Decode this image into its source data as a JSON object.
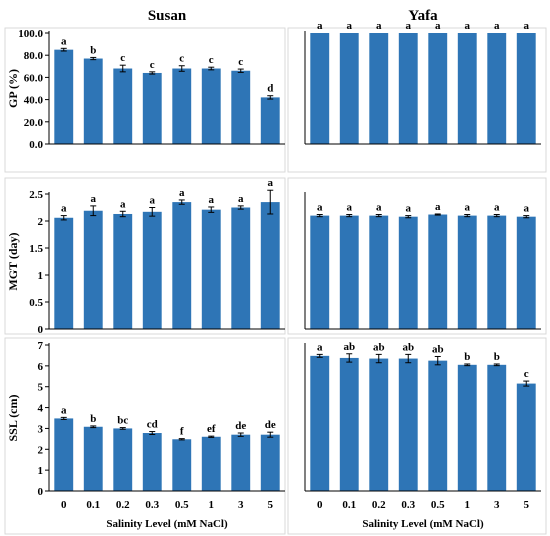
{
  "colors": {
    "bar": "#2e75b6",
    "axis": "#000000",
    "panel_border": "#d9d9d9"
  },
  "chart_data": [
    {
      "type": "bar",
      "panel": "Susan-GP",
      "title": "Susan",
      "xlabel": "",
      "ylabel": "GP (%)",
      "categories": [
        "0",
        "0.1",
        "0.2",
        "0.3",
        "0.5",
        "1",
        "3",
        "5"
      ],
      "values": [
        85,
        77,
        68,
        64,
        68,
        68,
        66,
        42
      ],
      "errors": [
        1.2,
        1.0,
        3.0,
        1.0,
        2.5,
        1.2,
        1.5,
        1.5
      ],
      "letters": [
        "a",
        "b",
        "c",
        "c",
        "c",
        "c",
        "c",
        "d"
      ],
      "ylim": [
        0,
        100
      ],
      "yticks": [
        0,
        20,
        40,
        60,
        80,
        100
      ],
      "yticklabels": [
        "0.0",
        "20.0",
        "40.0",
        "60.0",
        "80.0",
        "100.0"
      ],
      "grid": false
    },
    {
      "type": "bar",
      "panel": "Yafa-GP",
      "title": "Yafa",
      "xlabel": "",
      "ylabel": "",
      "categories": [
        "0",
        "0.1",
        "0.2",
        "0.3",
        "0.5",
        "1",
        "3",
        "5"
      ],
      "values": [
        100,
        100,
        100,
        100,
        100,
        100,
        100,
        100
      ],
      "errors": [
        0,
        0,
        0,
        0,
        0,
        0,
        0,
        0
      ],
      "letters": [
        "a",
        "a",
        "a",
        "a",
        "a",
        "a",
        "a",
        "a"
      ],
      "ylim": [
        0,
        100
      ],
      "yticks": [],
      "yticklabels": [],
      "grid": false
    },
    {
      "type": "bar",
      "panel": "Susan-MGT",
      "title": "",
      "xlabel": "",
      "ylabel": "MGT (day)",
      "categories": [
        "0",
        "0.1",
        "0.2",
        "0.3",
        "0.5",
        "1",
        "3",
        "5"
      ],
      "values": [
        2.06,
        2.19,
        2.13,
        2.17,
        2.35,
        2.21,
        2.25,
        2.35
      ],
      "errors": [
        0.04,
        0.09,
        0.05,
        0.08,
        0.04,
        0.05,
        0.03,
        0.22
      ],
      "letters": [
        "a",
        "a",
        "a",
        "a",
        "a",
        "a",
        "a",
        "a"
      ],
      "ylim": [
        0,
        2.5
      ],
      "yticks": [
        0,
        0.5,
        1,
        1.5,
        2,
        2.5
      ],
      "yticklabels": [
        "0",
        "0.5",
        "1",
        "1.5",
        "2",
        "2.5"
      ],
      "grid": false
    },
    {
      "type": "bar",
      "panel": "Yafa-MGT",
      "title": "",
      "xlabel": "",
      "ylabel": "",
      "categories": [
        "0",
        "0.1",
        "0.2",
        "0.3",
        "0.5",
        "1",
        "3",
        "5"
      ],
      "values": [
        2.1,
        2.1,
        2.1,
        2.08,
        2.12,
        2.1,
        2.1,
        2.08
      ],
      "errors": [
        0.02,
        0.02,
        0.02,
        0.02,
        0.01,
        0.02,
        0.02,
        0.02
      ],
      "letters": [
        "a",
        "a",
        "a",
        "a",
        "a",
        "a",
        "a",
        "a"
      ],
      "ylim": [
        0,
        2.5
      ],
      "yticks": [],
      "yticklabels": [],
      "grid": false
    },
    {
      "type": "bar",
      "panel": "Susan-SSL",
      "title": "",
      "xlabel": "Salinity Level (mM NaCl)",
      "ylabel": "SSL (cm)",
      "categories": [
        "0",
        "0.1",
        "0.2",
        "0.3",
        "0.5",
        "1",
        "3",
        "5"
      ],
      "values": [
        3.48,
        3.08,
        3.0,
        2.78,
        2.48,
        2.6,
        2.7,
        2.7
      ],
      "errors": [
        0.05,
        0.04,
        0.04,
        0.07,
        0.03,
        0.03,
        0.08,
        0.12
      ],
      "letters": [
        "a",
        "b",
        "bc",
        "cd",
        "f",
        "ef",
        "de",
        "de"
      ],
      "ylim": [
        0,
        7
      ],
      "yticks": [
        0,
        1,
        2,
        3,
        4,
        5,
        6,
        7
      ],
      "yticklabels": [
        "0",
        "1",
        "2",
        "3",
        "4",
        "5",
        "6",
        "7"
      ],
      "grid": false
    },
    {
      "type": "bar",
      "panel": "Yafa-SSL",
      "title": "",
      "xlabel": "Salinity Level (mM NaCl)",
      "ylabel": "",
      "categories": [
        "0",
        "0.1",
        "0.2",
        "0.3",
        "0.5",
        "1",
        "3",
        "5"
      ],
      "values": [
        6.48,
        6.38,
        6.35,
        6.35,
        6.25,
        6.05,
        6.05,
        5.15
      ],
      "errors": [
        0.07,
        0.2,
        0.2,
        0.2,
        0.2,
        0.04,
        0.04,
        0.12
      ],
      "letters": [
        "a",
        "ab",
        "ab",
        "ab",
        "ab",
        "b",
        "b",
        "c"
      ],
      "ylim": [
        0,
        7
      ],
      "yticks": [],
      "yticklabels": [],
      "grid": false
    }
  ]
}
